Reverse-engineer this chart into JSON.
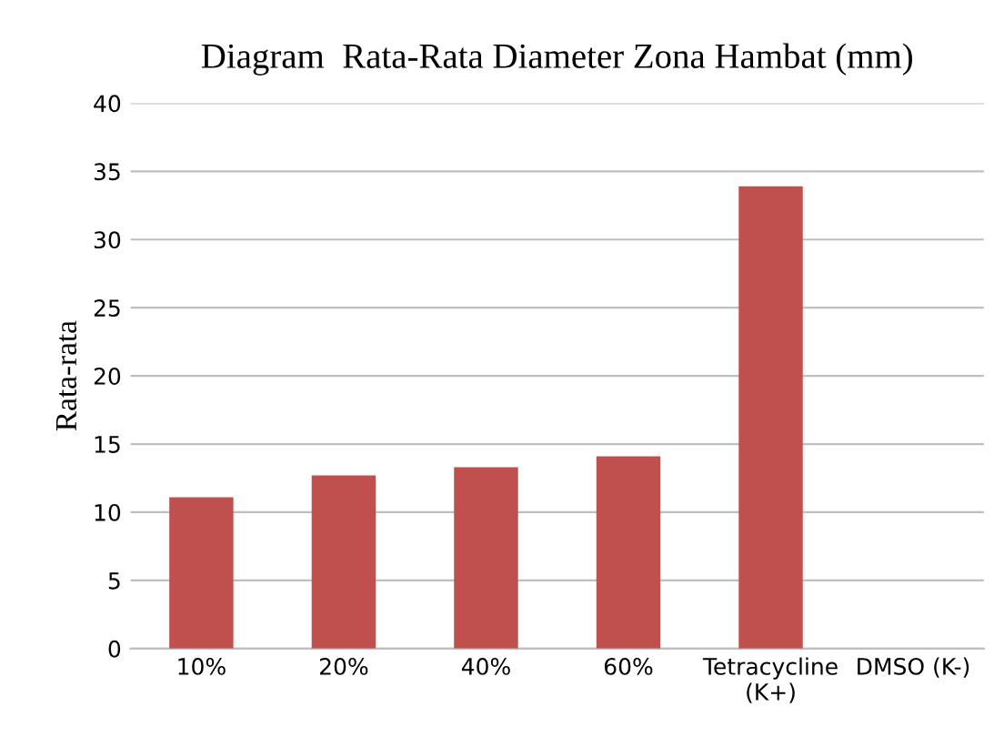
{
  "chart_data": {
    "type": "bar",
    "title": "Diagram  Rata-Rata Diameter Zona Hambat (mm)",
    "ylabel": "Rata-rata",
    "categories": [
      "10%",
      "20%",
      "40%",
      "60%",
      "Tetracycline\n(K+)",
      "DMSO (K-)"
    ],
    "values": [
      11.1,
      12.7,
      13.3,
      14.1,
      33.9,
      0
    ],
    "color": "#c0504d",
    "ylim": [
      0,
      40
    ],
    "yticks": [
      0,
      5,
      10,
      15,
      20,
      25,
      30,
      35,
      40
    ],
    "grid": "y"
  }
}
